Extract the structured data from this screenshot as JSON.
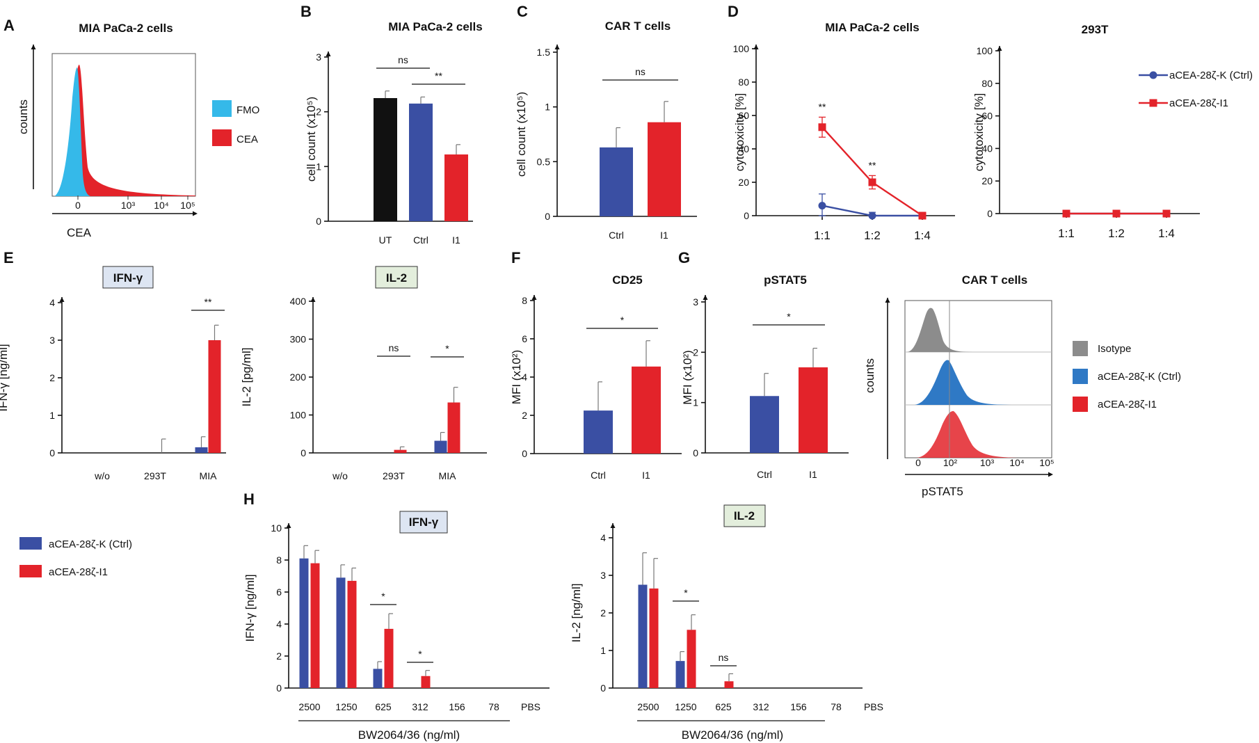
{
  "colors": {
    "ctrl": "#3a4fa3",
    "i1": "#e3232a",
    "ut": "#111111",
    "fmo": "#35b9e9",
    "cea": "#e3232a",
    "isotype": "#8c8c8c",
    "k": "#2f79c5",
    "boxE": "#dde5f2",
    "boxG": "#e3eedc"
  },
  "chart_data": [
    {
      "id": "A",
      "type": "histogram",
      "panel": "A",
      "title": "MIA PaCa-2 cells",
      "ylabel": "counts",
      "xlabel": "CEA",
      "xticks": [
        "0",
        "10³",
        "10⁴",
        "10⁵"
      ],
      "legend": [
        "FMO",
        "CEA"
      ]
    },
    {
      "id": "B",
      "type": "bar",
      "panel": "B",
      "title": "MIA PaCa-2 cells",
      "ylabel": "cell count (x10⁵)",
      "ylim": [
        0,
        3
      ],
      "yticks": [
        0,
        1,
        2,
        3
      ],
      "categories": [
        "UT",
        "Ctrl",
        "I1"
      ],
      "values": [
        2.25,
        2.15,
        1.22
      ],
      "errors": [
        0.13,
        0.12,
        0.18
      ],
      "annotations": [
        {
          "label": "ns",
          "between": [
            0,
            1
          ]
        },
        {
          "label": "**",
          "between": [
            1,
            2
          ]
        }
      ]
    },
    {
      "id": "C",
      "type": "bar",
      "panel": "C",
      "title": "CAR T cells",
      "ylabel": "cell count (x10⁵)",
      "ylim": [
        0,
        1.5
      ],
      "yticks": [
        0,
        0.5,
        1,
        1.5
      ],
      "categories": [
        "Ctrl",
        "I1"
      ],
      "values": [
        0.63,
        0.86
      ],
      "errors": [
        0.18,
        0.19
      ],
      "annotations": [
        {
          "label": "ns",
          "between": [
            0,
            1
          ]
        }
      ]
    },
    {
      "id": "D1",
      "type": "line",
      "panel": "D",
      "title": "MIA PaCa-2 cells",
      "ylabel": "cytotoxicity [%]",
      "ylim": [
        0,
        100
      ],
      "yticks": [
        0,
        20,
        40,
        60,
        80,
        100
      ],
      "categories": [
        "1:1",
        "1:2",
        "1:4"
      ],
      "series": [
        {
          "name": "aCEA-28ζ-K (Ctrl)",
          "values": [
            6,
            0,
            0
          ],
          "errors": [
            7,
            2,
            1
          ]
        },
        {
          "name": "aCEA-28ζ-I1",
          "values": [
            53,
            20,
            0
          ],
          "errors": [
            6,
            4,
            1
          ]
        }
      ],
      "annotations": [
        "**",
        "**"
      ]
    },
    {
      "id": "D2",
      "type": "line",
      "panel": "",
      "title": "293T",
      "ylabel": "cytotoxicity [%]",
      "ylim": [
        0,
        100
      ],
      "yticks": [
        0,
        20,
        40,
        60,
        80,
        100
      ],
      "categories": [
        "1:1",
        "1:2",
        "1:4"
      ],
      "series": [
        {
          "name": "aCEA-28ζ-K (Ctrl)",
          "values": [
            0,
            0,
            0
          ],
          "errors": [
            1,
            1,
            1
          ]
        },
        {
          "name": "aCEA-28ζ-I1",
          "values": [
            0,
            0,
            0
          ],
          "errors": [
            1,
            1,
            2
          ]
        }
      ],
      "legend": [
        "aCEA-28ζ-K (Ctrl)",
        "aCEA-28ζ-I1"
      ]
    },
    {
      "id": "E1",
      "type": "bar",
      "panel": "E",
      "title": "IFN-γ",
      "ylabel": "IFN-γ [ng/ml]",
      "ylim": [
        0,
        4
      ],
      "yticks": [
        0,
        1,
        2,
        3,
        4
      ],
      "categories": [
        "w/o",
        "293T",
        "MIA"
      ],
      "series": [
        {
          "name": "aCEA-28ζ-K (Ctrl)",
          "values": [
            0,
            0,
            0.15
          ],
          "errors": [
            0,
            0,
            0.28
          ]
        },
        {
          "name": "aCEA-28ζ-I1",
          "values": [
            0,
            0,
            3.0
          ],
          "errors": [
            0,
            0.37,
            0.4
          ]
        }
      ],
      "annotations": [
        {
          "label": "**",
          "category": 2
        }
      ]
    },
    {
      "id": "E2",
      "type": "bar",
      "panel": "",
      "title": "IL-2",
      "ylabel": "IL-2 [pg/ml]",
      "ylim": [
        0,
        400
      ],
      "yticks": [
        0,
        100,
        200,
        300,
        400
      ],
      "categories": [
        "w/o",
        "293T",
        "MIA"
      ],
      "series": [
        {
          "name": "aCEA-28ζ-K (Ctrl)",
          "values": [
            0,
            0,
            32
          ],
          "errors": [
            0,
            0,
            22
          ]
        },
        {
          "name": "aCEA-28ζ-I1",
          "values": [
            0,
            8,
            133
          ],
          "errors": [
            0,
            8,
            40
          ]
        }
      ],
      "annotations": [
        {
          "label": "ns",
          "category": 1
        },
        {
          "label": "*",
          "category": 2
        }
      ]
    },
    {
      "id": "F",
      "type": "bar",
      "panel": "F",
      "title": "CD25",
      "ylabel": "MFI (x10²)",
      "ylim": [
        0,
        8
      ],
      "yticks": [
        0,
        2,
        4,
        6,
        8
      ],
      "categories": [
        "Ctrl",
        "I1"
      ],
      "values": [
        2.25,
        4.55
      ],
      "errors": [
        1.5,
        1.35
      ],
      "annotations": [
        {
          "label": "*",
          "between": [
            0,
            1
          ]
        }
      ]
    },
    {
      "id": "G",
      "type": "bar",
      "panel": "G",
      "title": "pSTAT5",
      "ylabel": "MFI (x10²)",
      "ylim": [
        0,
        3
      ],
      "yticks": [
        0,
        1,
        2,
        3
      ],
      "categories": [
        "Ctrl",
        "I1"
      ],
      "values": [
        1.13,
        1.7
      ],
      "errors": [
        0.45,
        0.38
      ],
      "annotations": [
        {
          "label": "*",
          "between": [
            0,
            1
          ]
        }
      ]
    },
    {
      "id": "G2",
      "type": "histogram",
      "panel": "",
      "title": "CAR T cells",
      "ylabel": "counts",
      "xlabel": "pSTAT5",
      "xticks": [
        "0",
        "10²",
        "10³",
        "10⁴",
        "10⁵"
      ],
      "legend": [
        "Isotype",
        "aCEA-28ζ-K (Ctrl)",
        "aCEA-28ζ-I1"
      ]
    },
    {
      "id": "H1",
      "type": "bar",
      "panel": "H",
      "title": "IFN-γ",
      "ylabel": "IFN-γ [ng/ml]",
      "xlabel": "BW2064/36 (ng/ml)",
      "ylim": [
        0,
        10
      ],
      "yticks": [
        0,
        2,
        4,
        6,
        8,
        10
      ],
      "categories": [
        "2500",
        "1250",
        "625",
        "312",
        "156",
        "78",
        "PBS"
      ],
      "series": [
        {
          "name": "aCEA-28ζ-K (Ctrl)",
          "values": [
            8.1,
            6.9,
            1.2,
            0,
            0,
            0,
            0
          ],
          "errors": [
            0.8,
            0.8,
            0.45,
            0,
            0,
            0,
            0
          ]
        },
        {
          "name": "aCEA-28ζ-I1",
          "values": [
            7.8,
            6.7,
            3.7,
            0.75,
            0,
            0,
            0
          ],
          "errors": [
            0.8,
            0.8,
            0.95,
            0.35,
            0,
            0,
            0
          ]
        }
      ],
      "annotations": [
        {
          "label": "*",
          "category": 2
        },
        {
          "label": "*",
          "category": 3
        }
      ]
    },
    {
      "id": "H2",
      "type": "bar",
      "panel": "",
      "title": "IL-2",
      "ylabel": "IL-2 [ng/ml]",
      "xlabel": "BW2064/36 (ng/ml)",
      "ylim": [
        0,
        4
      ],
      "yticks": [
        0,
        1,
        2,
        3,
        4
      ],
      "categories": [
        "2500",
        "1250",
        "625",
        "312",
        "156",
        "78",
        "PBS"
      ],
      "series": [
        {
          "name": "aCEA-28ζ-K (Ctrl)",
          "values": [
            2.75,
            0.72,
            0,
            0,
            0,
            0,
            0
          ],
          "errors": [
            0.85,
            0.25,
            0,
            0,
            0,
            0,
            0
          ]
        },
        {
          "name": "aCEA-28ζ-I1",
          "values": [
            2.65,
            1.55,
            0.18,
            0,
            0,
            0,
            0
          ],
          "errors": [
            0.8,
            0.4,
            0.2,
            0,
            0,
            0,
            0
          ]
        }
      ],
      "annotations": [
        {
          "label": "*",
          "category": 1
        },
        {
          "label": "ns",
          "category": 2
        }
      ]
    }
  ],
  "legend_E": [
    "aCEA-28ζ-K (Ctrl)",
    "aCEA-28ζ-I1"
  ]
}
